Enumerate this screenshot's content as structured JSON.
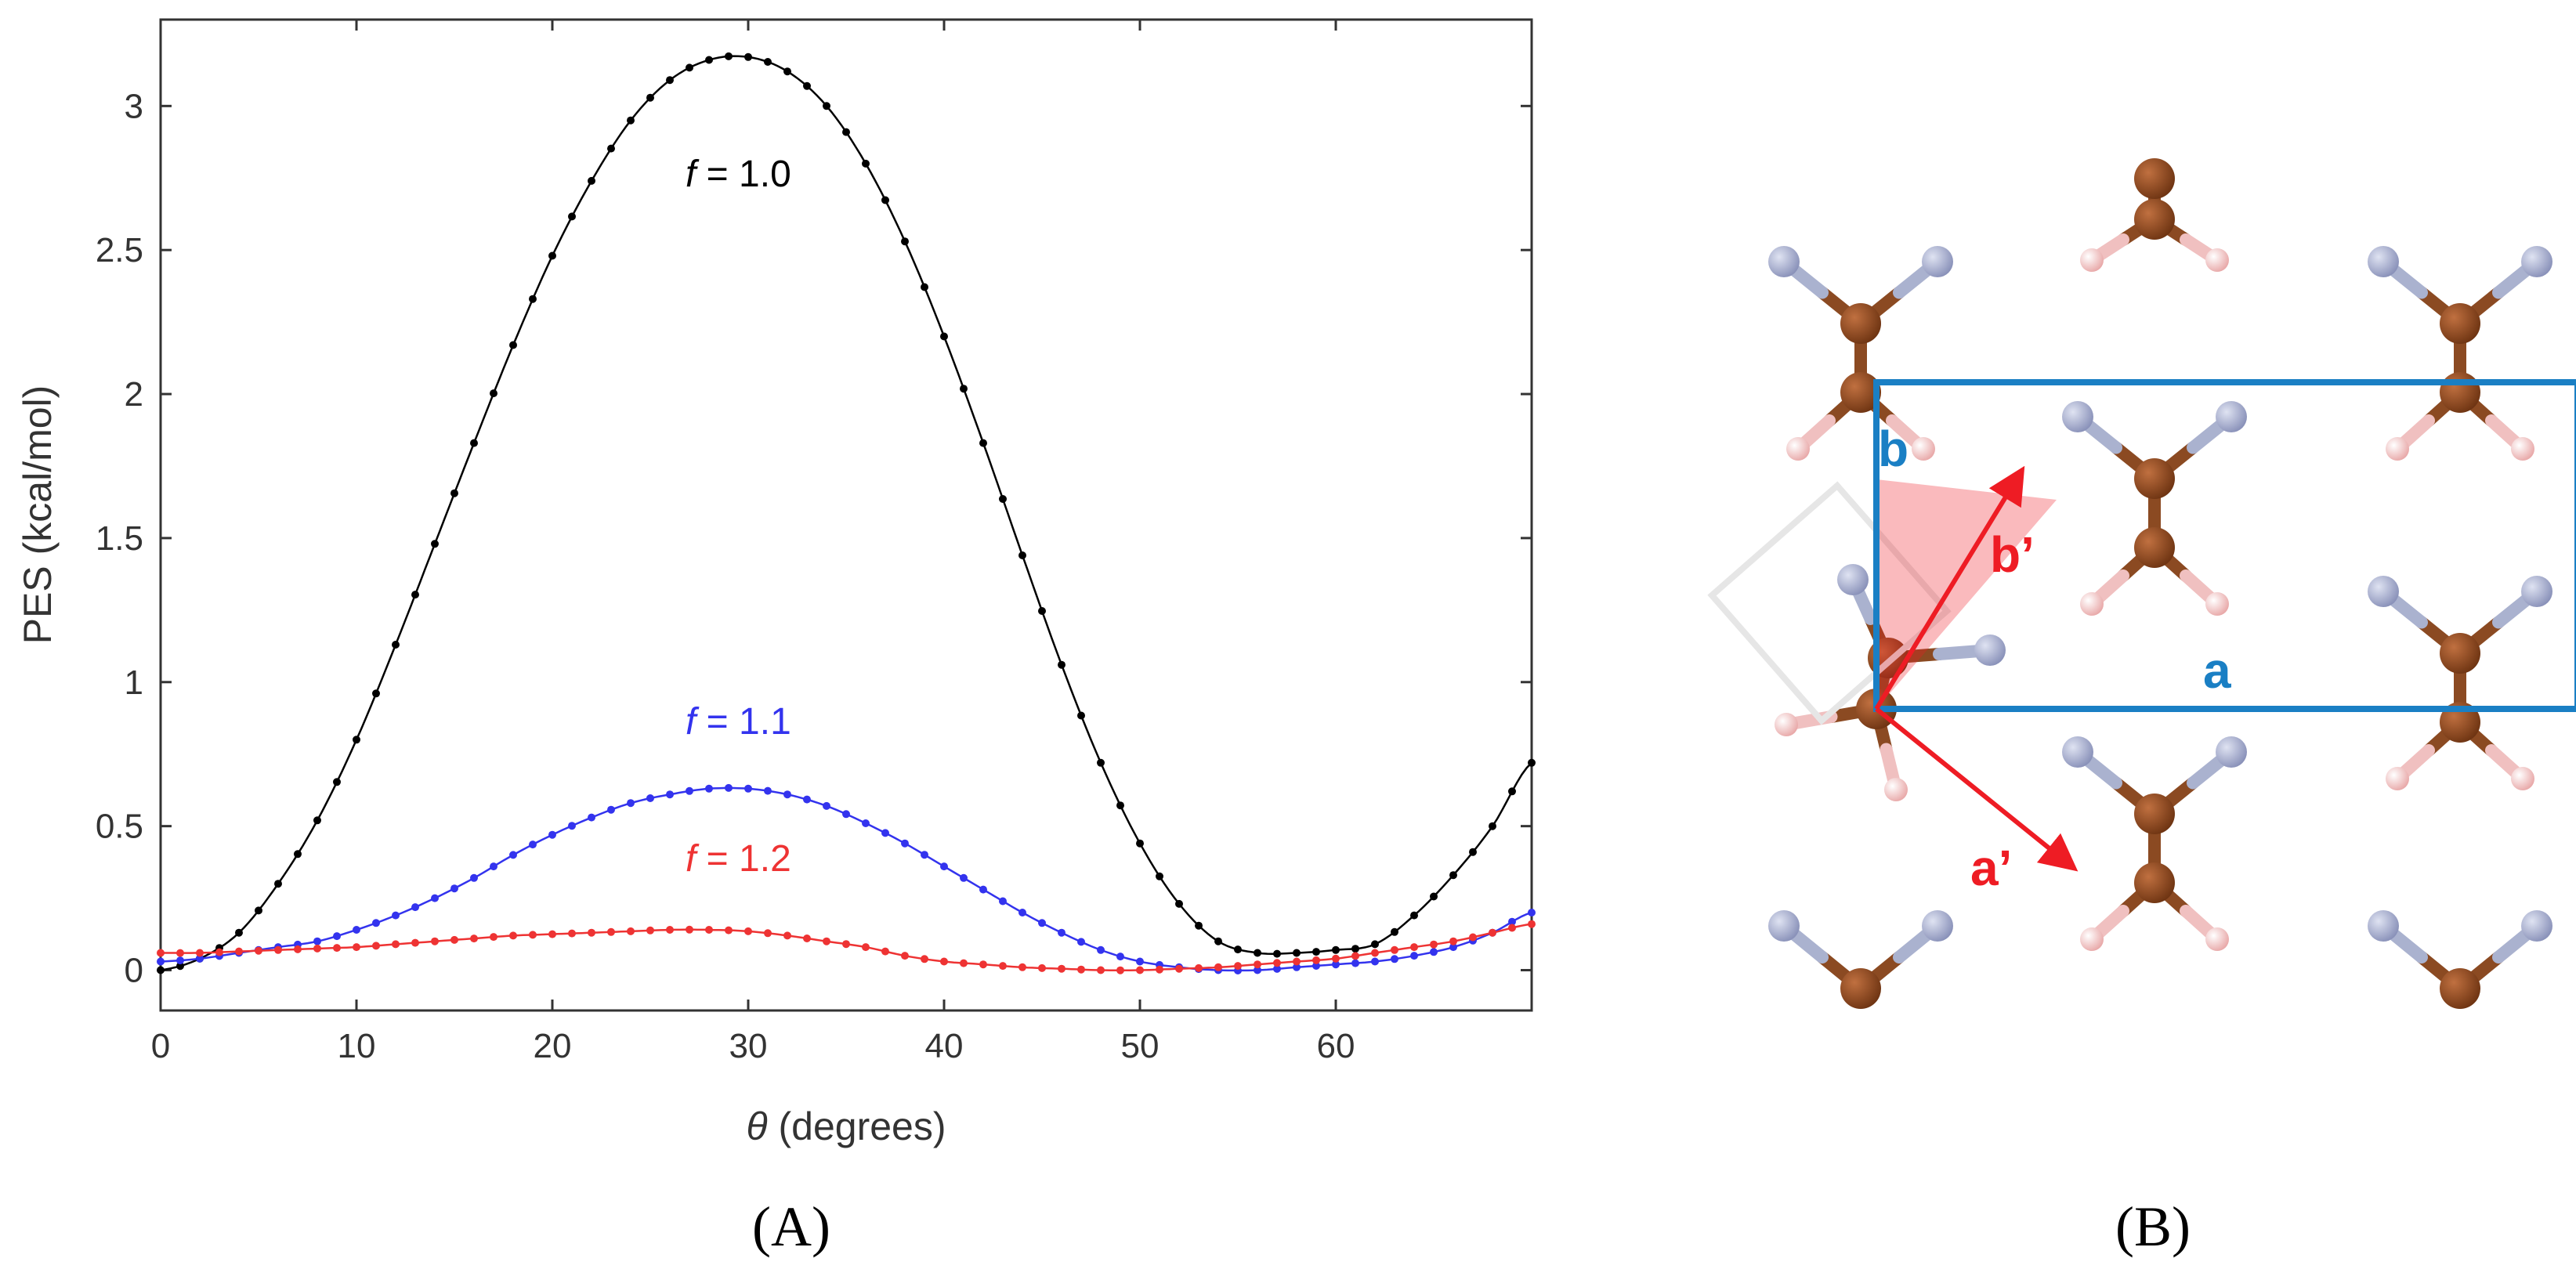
{
  "chart_data": {
    "type": "line",
    "xlabel": "θ (degrees)",
    "xlabel_italic": "θ",
    "xlabel_rest": " (degrees)",
    "ylabel": "PES (kcal/mol)",
    "xlim": [
      0,
      70
    ],
    "ylim": [
      -0.14,
      3.3
    ],
    "xticks": [
      0,
      10,
      20,
      30,
      40,
      50,
      60
    ],
    "yticks": [
      0,
      0.5,
      1,
      1.5,
      2,
      2.5,
      3
    ],
    "xtick_labels": [
      "0",
      "10",
      "20",
      "30",
      "40",
      "50",
      "60"
    ],
    "ytick_labels": [
      "0",
      "0.5",
      "1",
      "1.5",
      "2",
      "2.5",
      "3"
    ],
    "grid": false,
    "series": [
      {
        "label_var": "f",
        "label_value": " = 1.0",
        "color": "#000000",
        "x": [
          0,
          2,
          4,
          6,
          8,
          10,
          12,
          14,
          16,
          18,
          20,
          22,
          24,
          26,
          28,
          30,
          32,
          34,
          36,
          38,
          40,
          42,
          44,
          46,
          48,
          50,
          52,
          54,
          56,
          58,
          60,
          62,
          64,
          66,
          68,
          70
        ],
        "y": [
          0.0,
          0.04,
          0.13,
          0.3,
          0.52,
          0.8,
          1.13,
          1.48,
          1.83,
          2.17,
          2.48,
          2.74,
          2.95,
          3.09,
          3.16,
          3.17,
          3.12,
          3.0,
          2.8,
          2.53,
          2.2,
          1.83,
          1.44,
          1.06,
          0.72,
          0.44,
          0.23,
          0.1,
          0.06,
          0.06,
          0.07,
          0.09,
          0.19,
          0.33,
          0.5,
          0.72
        ]
      },
      {
        "label_var": "f",
        "label_value": " = 1.1",
        "color": "#3333ee",
        "x": [
          0,
          2,
          4,
          6,
          8,
          10,
          12,
          14,
          16,
          18,
          20,
          22,
          24,
          26,
          28,
          30,
          32,
          34,
          36,
          38,
          40,
          42,
          44,
          46,
          48,
          50,
          52,
          54,
          56,
          58,
          60,
          62,
          64,
          66,
          68,
          70
        ],
        "y": [
          0.03,
          0.04,
          0.06,
          0.08,
          0.1,
          0.14,
          0.19,
          0.25,
          0.32,
          0.4,
          0.47,
          0.53,
          0.58,
          0.61,
          0.63,
          0.63,
          0.61,
          0.57,
          0.51,
          0.44,
          0.36,
          0.28,
          0.2,
          0.13,
          0.07,
          0.03,
          0.01,
          0.0,
          0.0,
          0.01,
          0.02,
          0.03,
          0.05,
          0.08,
          0.13,
          0.2
        ]
      },
      {
        "label_var": "f",
        "label_value": " = 1.2",
        "color": "#ee3333",
        "x": [
          0,
          2,
          4,
          6,
          8,
          10,
          12,
          14,
          16,
          18,
          20,
          22,
          24,
          26,
          28,
          30,
          32,
          34,
          36,
          38,
          40,
          42,
          44,
          46,
          48,
          50,
          52,
          54,
          56,
          58,
          60,
          62,
          64,
          66,
          68,
          70
        ],
        "y": [
          0.06,
          0.06,
          0.065,
          0.07,
          0.075,
          0.08,
          0.09,
          0.1,
          0.11,
          0.12,
          0.125,
          0.13,
          0.135,
          0.14,
          0.14,
          0.135,
          0.12,
          0.1,
          0.08,
          0.05,
          0.03,
          0.02,
          0.01,
          0.005,
          0.0,
          0.0,
          0.005,
          0.01,
          0.02,
          0.03,
          0.04,
          0.06,
          0.08,
          0.1,
          0.13,
          0.16
        ]
      }
    ]
  },
  "captions": {
    "panel_a": "(A)",
    "panel_b": "(B)"
  },
  "crystal": {
    "label_a": "a",
    "label_b": "b",
    "label_a_prime": "a’",
    "label_b_prime": "b’",
    "cell_color": "#1a7fc4",
    "arrow_color": "#ee1c24",
    "carbon_color": "#8b4a22",
    "nitrogen_color": "#aab2cf",
    "hydrogen_color": "#f4c8c8"
  }
}
